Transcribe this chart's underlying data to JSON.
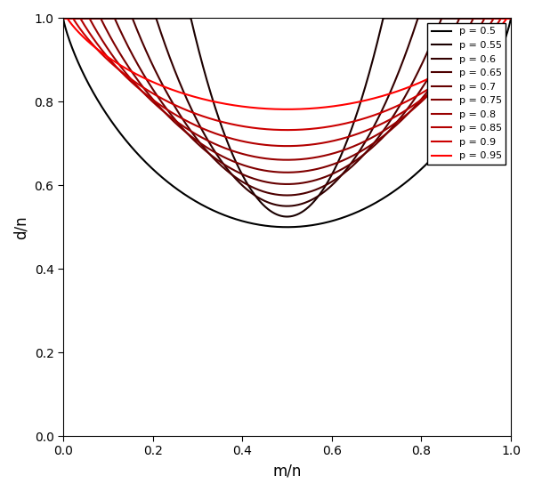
{
  "p_values": [
    0.5,
    0.55,
    0.6,
    0.65,
    0.7,
    0.75,
    0.8,
    0.85,
    0.9,
    0.95
  ],
  "colors": [
    "#000000",
    "#1a0000",
    "#330000",
    "#4d0000",
    "#660000",
    "#800000",
    "#990000",
    "#b30000",
    "#cc0000",
    "#ff0000"
  ],
  "xlabel": "m/n",
  "ylabel": "d/n",
  "xlim": [
    0,
    1
  ],
  "ylim": [
    -0.02,
    1.02
  ],
  "xticks": [
    0.0,
    0.2,
    0.4,
    0.6,
    0.8,
    1.0
  ],
  "yticks": [
    0.0,
    0.2,
    0.4,
    0.6,
    0.8,
    1.0
  ],
  "linewidth": 1.5,
  "legend_loc": "upper right",
  "figsize": [
    6.0,
    5.53
  ],
  "dpi": 100
}
